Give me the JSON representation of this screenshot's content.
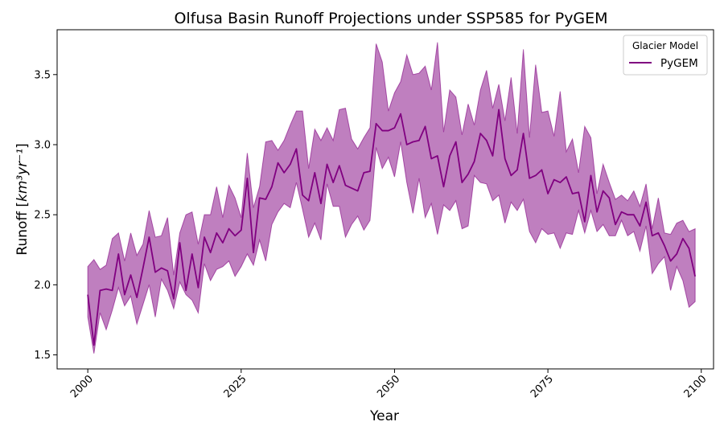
{
  "chart_data": {
    "type": "line",
    "title": "Olfusa Basin Runoff Projections under SSP585 for PyGEM",
    "xlabel": "Year",
    "ylabel_prefix": "Runoff [",
    "ylabel_math": "km³yr⁻¹",
    "ylabel_suffix": "]",
    "xlim": [
      1995,
      2102
    ],
    "ylim": [
      1.4,
      3.82
    ],
    "xticks": [
      2000,
      2025,
      2050,
      2075,
      2100
    ],
    "yticks": [
      1.5,
      2.0,
      2.5,
      3.0,
      3.5
    ],
    "ytick_labels": [
      "1.5",
      "2.0",
      "2.5",
      "3.0",
      "3.5"
    ],
    "grid": false,
    "legend": {
      "title": "Glacier Model",
      "placement": "top-right"
    },
    "colors": {
      "line": "#800080",
      "band": "#800080",
      "band_opacity": 0.5
    },
    "series": [
      {
        "name": "PyGEM",
        "x": [
          2000,
          2001,
          2002,
          2003,
          2004,
          2005,
          2006,
          2007,
          2008,
          2009,
          2010,
          2011,
          2012,
          2013,
          2014,
          2015,
          2016,
          2017,
          2018,
          2019,
          2020,
          2021,
          2022,
          2023,
          2024,
          2025,
          2026,
          2027,
          2028,
          2029,
          2030,
          2031,
          2032,
          2033,
          2034,
          2035,
          2036,
          2037,
          2038,
          2039,
          2040,
          2041,
          2042,
          2043,
          2044,
          2045,
          2046,
          2047,
          2048,
          2049,
          2050,
          2051,
          2052,
          2053,
          2054,
          2055,
          2056,
          2057,
          2058,
          2059,
          2060,
          2061,
          2062,
          2063,
          2064,
          2065,
          2066,
          2067,
          2068,
          2069,
          2070,
          2071,
          2072,
          2073,
          2074,
          2075,
          2076,
          2077,
          2078,
          2079,
          2080,
          2081,
          2082,
          2083,
          2084,
          2085,
          2086,
          2087,
          2088,
          2089,
          2090,
          2091,
          2092,
          2093,
          2094,
          2095,
          2096,
          2097,
          2098,
          2099
        ],
        "y": [
          1.93,
          1.57,
          1.96,
          1.97,
          1.96,
          2.22,
          1.93,
          2.07,
          1.91,
          2.12,
          2.34,
          2.09,
          2.12,
          2.1,
          1.9,
          2.3,
          1.96,
          2.22,
          1.98,
          2.34,
          2.23,
          2.37,
          2.3,
          2.4,
          2.35,
          2.39,
          2.76,
          2.23,
          2.62,
          2.61,
          2.7,
          2.87,
          2.8,
          2.86,
          2.97,
          2.64,
          2.6,
          2.8,
          2.58,
          2.86,
          2.73,
          2.85,
          2.71,
          2.69,
          2.67,
          2.8,
          2.81,
          3.15,
          3.1,
          3.1,
          3.12,
          3.22,
          3.0,
          3.02,
          3.03,
          3.13,
          2.9,
          2.92,
          2.7,
          2.92,
          3.02,
          2.73,
          2.79,
          2.88,
          3.08,
          3.03,
          2.92,
          3.25,
          2.9,
          2.78,
          2.82,
          3.08,
          2.76,
          2.78,
          2.82,
          2.65,
          2.75,
          2.73,
          2.77,
          2.65,
          2.66,
          2.45,
          2.78,
          2.52,
          2.67,
          2.62,
          2.43,
          2.52,
          2.5,
          2.5,
          2.42,
          2.59,
          2.35,
          2.37,
          2.28,
          2.17,
          2.22,
          2.33,
          2.26,
          2.06
        ],
        "lower": [
          1.77,
          1.51,
          1.8,
          1.68,
          1.82,
          1.98,
          1.85,
          1.92,
          1.72,
          1.86,
          2.0,
          1.77,
          2.04,
          1.96,
          1.83,
          2.02,
          1.93,
          1.89,
          1.8,
          2.15,
          2.03,
          2.11,
          2.13,
          2.17,
          2.06,
          2.13,
          2.22,
          2.14,
          2.32,
          2.17,
          2.43,
          2.52,
          2.58,
          2.55,
          2.73,
          2.54,
          2.34,
          2.44,
          2.32,
          2.72,
          2.56,
          2.56,
          2.34,
          2.43,
          2.49,
          2.39,
          2.46,
          2.98,
          2.83,
          2.91,
          2.77,
          3.02,
          2.73,
          2.51,
          2.76,
          2.48,
          2.58,
          2.36,
          2.57,
          2.53,
          2.6,
          2.4,
          2.42,
          2.78,
          2.73,
          2.72,
          2.6,
          2.64,
          2.44,
          2.59,
          2.53,
          2.61,
          2.38,
          2.3,
          2.4,
          2.36,
          2.37,
          2.26,
          2.37,
          2.36,
          2.53,
          2.37,
          2.53,
          2.38,
          2.43,
          2.35,
          2.35,
          2.46,
          2.35,
          2.38,
          2.24,
          2.42,
          2.08,
          2.15,
          2.2,
          1.96,
          2.13,
          2.03,
          1.84,
          1.88
        ],
        "upper": [
          2.13,
          2.18,
          2.11,
          2.14,
          2.33,
          2.37,
          2.17,
          2.37,
          2.21,
          2.29,
          2.53,
          2.34,
          2.35,
          2.48,
          2.07,
          2.37,
          2.5,
          2.52,
          2.29,
          2.5,
          2.5,
          2.7,
          2.48,
          2.71,
          2.62,
          2.48,
          2.94,
          2.55,
          2.7,
          3.02,
          3.03,
          2.96,
          3.03,
          3.14,
          3.24,
          3.24,
          2.83,
          3.11,
          3.03,
          3.12,
          3.03,
          3.25,
          3.26,
          3.04,
          2.97,
          3.05,
          3.12,
          3.72,
          3.59,
          3.24,
          3.37,
          3.45,
          3.64,
          3.5,
          3.51,
          3.56,
          3.39,
          3.73,
          3.09,
          3.39,
          3.34,
          3.07,
          3.29,
          3.14,
          3.39,
          3.53,
          3.26,
          3.43,
          3.17,
          3.48,
          3.08,
          3.68,
          3.05,
          3.57,
          3.23,
          3.24,
          3.06,
          3.38,
          2.95,
          3.04,
          2.8,
          3.13,
          3.05,
          2.65,
          2.86,
          2.73,
          2.61,
          2.64,
          2.6,
          2.67,
          2.56,
          2.72,
          2.4,
          2.62,
          2.37,
          2.36,
          2.44,
          2.46,
          2.38,
          2.4
        ]
      }
    ]
  }
}
